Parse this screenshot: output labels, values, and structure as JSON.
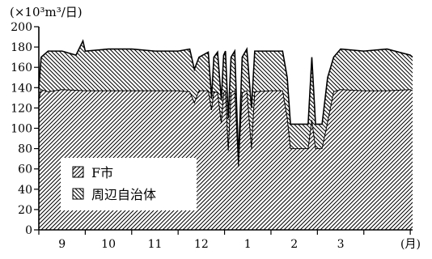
{
  "chart_data": {
    "type": "area",
    "stacked": true,
    "unit_label": "(×10³m³/日)",
    "x_unit": "(月)",
    "ylim": [
      0,
      200
    ],
    "y_ticks": [
      0,
      20,
      40,
      60,
      80,
      100,
      120,
      140,
      160,
      180,
      200
    ],
    "x_tick_labels": [
      "9",
      "10",
      "11",
      "12",
      "1",
      "2",
      "3"
    ],
    "grid": false,
    "legend": {
      "placement": "lower-left",
      "items": [
        "F市",
        "周辺自治体"
      ]
    },
    "hatch_colors": {
      "f_city": "#000000",
      "neighbors": "#000000"
    },
    "series": [
      {
        "name": "F市",
        "pattern": "forward-hatch",
        "points": [
          [
            8.5,
            128
          ],
          [
            8.55,
            138
          ],
          [
            8.7,
            136
          ],
          [
            9.0,
            138
          ],
          [
            9.5,
            137
          ],
          [
            10.0,
            137
          ],
          [
            10.5,
            137
          ],
          [
            11.0,
            137
          ],
          [
            11.5,
            137
          ],
          [
            11.75,
            136
          ],
          [
            11.85,
            125
          ],
          [
            11.95,
            137
          ],
          [
            12.15,
            137
          ],
          [
            12.22,
            118
          ],
          [
            12.27,
            136
          ],
          [
            12.35,
            135
          ],
          [
            12.43,
            105
          ],
          [
            12.48,
            135
          ],
          [
            12.52,
            137
          ],
          [
            12.58,
            78
          ],
          [
            12.64,
            135
          ],
          [
            12.72,
            137
          ],
          [
            12.8,
            62
          ],
          [
            12.88,
            135
          ],
          [
            12.98,
            137
          ],
          [
            13.08,
            80
          ],
          [
            13.15,
            136
          ],
          [
            13.5,
            137
          ],
          [
            13.75,
            137
          ],
          [
            13.85,
            110
          ],
          [
            13.92,
            80
          ],
          [
            14.1,
            80
          ],
          [
            14.3,
            80
          ],
          [
            14.38,
            108
          ],
          [
            14.46,
            80
          ],
          [
            14.6,
            80
          ],
          [
            14.72,
            106
          ],
          [
            14.85,
            136
          ],
          [
            15.0,
            138
          ],
          [
            15.5,
            137
          ],
          [
            16.0,
            137
          ],
          [
            16.5,
            138
          ],
          [
            16.55,
            137
          ]
        ]
      },
      {
        "name": "周辺自治体",
        "pattern": "back-hatch",
        "points": [
          [
            8.5,
            140
          ],
          [
            8.55,
            170
          ],
          [
            8.7,
            176
          ],
          [
            9.0,
            176
          ],
          [
            9.3,
            172
          ],
          [
            9.45,
            186
          ],
          [
            9.5,
            176
          ],
          [
            10.0,
            178
          ],
          [
            10.5,
            178
          ],
          [
            11.0,
            176
          ],
          [
            11.5,
            176
          ],
          [
            11.75,
            178
          ],
          [
            11.85,
            158
          ],
          [
            11.95,
            170
          ],
          [
            12.15,
            175
          ],
          [
            12.22,
            130
          ],
          [
            12.27,
            170
          ],
          [
            12.35,
            175
          ],
          [
            12.43,
            128
          ],
          [
            12.48,
            172
          ],
          [
            12.52,
            176
          ],
          [
            12.58,
            110
          ],
          [
            12.64,
            170
          ],
          [
            12.72,
            176
          ],
          [
            12.8,
            70
          ],
          [
            12.88,
            170
          ],
          [
            12.98,
            178
          ],
          [
            13.08,
            120
          ],
          [
            13.15,
            176
          ],
          [
            13.5,
            176
          ],
          [
            13.75,
            176
          ],
          [
            13.85,
            150
          ],
          [
            13.92,
            104
          ],
          [
            14.1,
            104
          ],
          [
            14.3,
            104
          ],
          [
            14.38,
            170
          ],
          [
            14.46,
            104
          ],
          [
            14.6,
            104
          ],
          [
            14.72,
            150
          ],
          [
            14.85,
            170
          ],
          [
            15.0,
            178
          ],
          [
            15.5,
            176
          ],
          [
            16.0,
            178
          ],
          [
            16.5,
            172
          ],
          [
            16.55,
            170
          ]
        ]
      }
    ]
  }
}
